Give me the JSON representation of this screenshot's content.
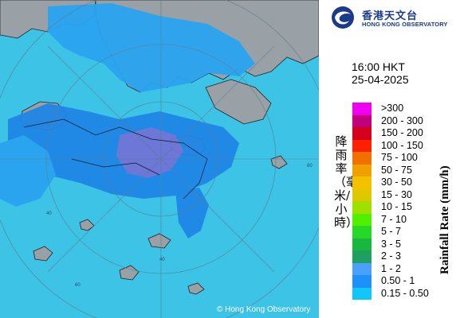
{
  "map": {
    "copyright": "© Hong Kong Observatory",
    "ring_labels": [
      "40",
      "60",
      "60",
      "40"
    ],
    "colors": {
      "sea": "#3cc3e6",
      "land": "#9aa1a6",
      "rain_light": "#2aa3f0",
      "rain_mid": "#1f86e6",
      "rain_heavy": "#6f73d6"
    }
  },
  "header": {
    "logo_icon": "hko-swirl-logo",
    "org_name_zh": "香港天文台",
    "org_name_en": "HONG KONG OBSERVATORY"
  },
  "timestamp": {
    "time": "16:00 HKT",
    "date": "25-04-2025"
  },
  "legend": {
    "title_zh": "降雨率（毫米/小時）",
    "title_en": "Rainfall Rate (mm/h)",
    "items": [
      {
        "label": ">300",
        "color": "#f000f0"
      },
      {
        "label": "200 - 300",
        "color": "#c0007a"
      },
      {
        "label": "150 - 200",
        "color": "#d4001e"
      },
      {
        "label": "100 - 150",
        "color": "#ff2000"
      },
      {
        "label": "75 - 100",
        "color": "#f07000"
      },
      {
        "label": "50 - 75",
        "color": "#f0a000"
      },
      {
        "label": "30 - 50",
        "color": "#f4c000"
      },
      {
        "label": "15 - 30",
        "color": "#e0c800"
      },
      {
        "label": "10 - 15",
        "color": "#a0e000"
      },
      {
        "label": "7 - 10",
        "color": "#50f000"
      },
      {
        "label": "5 - 7",
        "color": "#28d828"
      },
      {
        "label": "3 - 5",
        "color": "#18b840"
      },
      {
        "label": "2 - 3",
        "color": "#20a060"
      },
      {
        "label": "1 - 2",
        "color": "#4aa0ff"
      },
      {
        "label": "0.50 - 1",
        "color": "#1e90f8"
      },
      {
        "label": "0.15 - 0.50",
        "color": "#10c8f8"
      }
    ]
  }
}
